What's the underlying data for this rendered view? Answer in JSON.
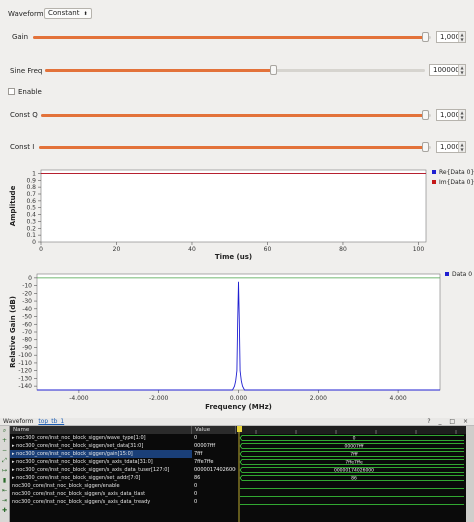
{
  "controls": {
    "waveform": {
      "label": "Waveform:",
      "value": "Constant"
    },
    "gain": {
      "label": "Gain",
      "value": "1,0000",
      "fraction": 0.985
    },
    "sine_freq": {
      "label": "Sine Freq",
      "value": "1000000",
      "fraction": 0.6
    },
    "enable": {
      "label": "Enable",
      "checked": false
    },
    "const_q": {
      "label": "Const Q",
      "value": "1,0000",
      "fraction": 0.985
    },
    "const_i": {
      "label": "Const I",
      "value": "1,0000",
      "fraction": 0.985
    }
  },
  "colors": {
    "accent": "#e3723a",
    "series_blue": "#1f1fd1",
    "series_red": "#c41818",
    "spectrum_green": "#46a046"
  },
  "chart_data": [
    {
      "type": "line",
      "xlabel": "Time (us)",
      "ylabel": "Amplitude",
      "xlim": [
        0,
        102
      ],
      "ylim": [
        0,
        1.05
      ],
      "x_ticks": [
        "0",
        "20",
        "40",
        "60",
        "80",
        "100"
      ],
      "y_ticks": [
        "0",
        "0.1",
        "0.2",
        "0.3",
        "0.4",
        "0.5",
        "0.6",
        "0.7",
        "0.8",
        "0.9",
        "1"
      ],
      "legend_position": "top-right",
      "series": [
        {
          "name": "Re{Data 0}",
          "x": [
            0,
            102
          ],
          "values": [
            1,
            1
          ]
        },
        {
          "name": "Im{Data 0}",
          "x": [
            0,
            102
          ],
          "values": [
            1,
            1
          ]
        }
      ]
    },
    {
      "type": "line",
      "xlabel": "Frequency (MHz)",
      "ylabel": "Relative Gain (dB)",
      "xlim": [
        -5.05,
        5.05
      ],
      "ylim": [
        -145,
        5
      ],
      "x_ticks": [
        "-4.000",
        "-2.000",
        "0.000",
        "2.000",
        "4.000"
      ],
      "y_ticks": [
        "0",
        "-10",
        "-20",
        "-30",
        "-40",
        "-50",
        "-60",
        "-70",
        "-80",
        "-90",
        "-100",
        "-110",
        "-120",
        "-130",
        "-140"
      ],
      "legend_position": "top-right",
      "series": [
        {
          "name": "Data 0",
          "x": [
            -5.05,
            -0.15,
            -0.1,
            -0.07,
            -0.04,
            -0.02,
            0,
            0.02,
            0.04,
            0.07,
            0.1,
            0.15,
            5.05
          ],
          "values": [
            -145,
            -145,
            -140,
            -133,
            -120,
            -55,
            -5,
            -55,
            -120,
            -133,
            -140,
            -145,
            -145
          ]
        }
      ],
      "reference_line": 0
    }
  ],
  "waveform_window": {
    "title": "Waveform",
    "tab": "top_tb_1",
    "buttons": "? _ □ ×",
    "columns": {
      "name": "Name",
      "value": "Value"
    },
    "rows": [
      {
        "name": "noc300_core/inst_noc_block_siggen/wave_type[1:0]",
        "value": "0"
      },
      {
        "name": "noc300_core/inst_noc_block_siggen/set_data[31:0]",
        "value": "00007fff"
      },
      {
        "name": "noc300_core/inst_noc_block_siggen/gain[15:0]",
        "value": "7fff"
      },
      {
        "name": "noc300_core/inst_noc_block_siggen/s_axis_tdata[31:0]",
        "value": "7ffe7ffe"
      },
      {
        "name": "noc300_core/inst_noc_block_siggen/s_axis_data_tuser[127:0]",
        "value": "00000174026000"
      },
      {
        "name": "noc300_core/inst_noc_block_siggen/set_addr[7:0]",
        "value": "86"
      },
      {
        "name": "noc300_core/inst_noc_block_siggen/enable",
        "value": "0"
      },
      {
        "name": "noc300_core/inst_noc_block_siggen/s_axis_data_tlast",
        "value": "0"
      },
      {
        "name": "noc300_core/inst_noc_block_siggen/s_axis_data_tready",
        "value": "0"
      }
    ],
    "wave_labels": [
      "0",
      "00007fff",
      "7fff",
      "7ffe7ffe",
      "00000174026000",
      "86"
    ]
  }
}
